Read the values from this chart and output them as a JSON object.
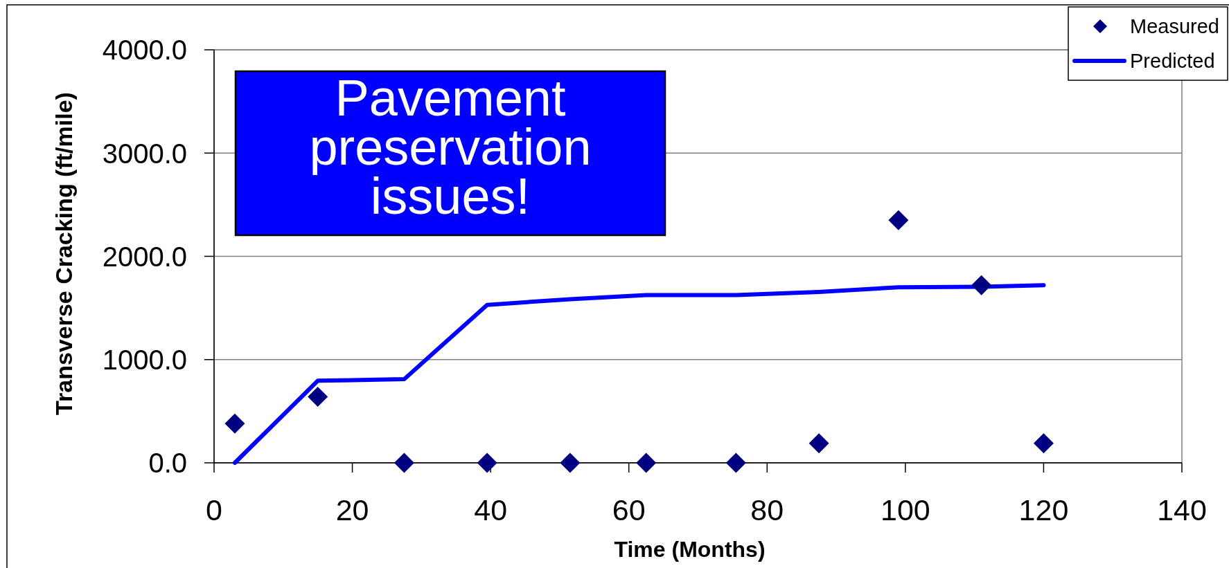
{
  "chart_data": {
    "type": "scatter",
    "x": [
      3,
      15,
      27.5,
      39.5,
      51.5,
      62.5,
      75.5,
      87.5,
      99,
      111,
      120
    ],
    "series": [
      {
        "name": "Measured",
        "color": "#000080",
        "marker": "diamond",
        "values": [
          380,
          640,
          0,
          0,
          0,
          0,
          0,
          190,
          2350,
          1720,
          190
        ]
      },
      {
        "name": "Predicted",
        "type": "line",
        "color": "#0000ff",
        "line_style": "solid",
        "values": [
          0,
          795,
          810,
          1530,
          1585,
          1625,
          1625,
          1655,
          1700,
          1705,
          1720
        ]
      }
    ],
    "xlabel": "Time (Months)",
    "ylabel": "Transverse Cracking (ft/mile)",
    "xlim": [
      0,
      140
    ],
    "xticks": [
      0,
      20,
      40,
      60,
      80,
      100,
      120,
      140
    ],
    "ylim": [
      0,
      4000
    ],
    "yticks": [
      {
        "value": 0,
        "label": "0.0"
      },
      {
        "value": 1000,
        "label": "1000.0"
      },
      {
        "value": 2000,
        "label": "2000.0"
      },
      {
        "value": 3000,
        "label": "3000.0"
      },
      {
        "value": 4000,
        "label": "4000.0"
      }
    ],
    "grid": "y",
    "legend": "top right",
    "annotations": [
      "Pavement preservation issues!"
    ]
  }
}
